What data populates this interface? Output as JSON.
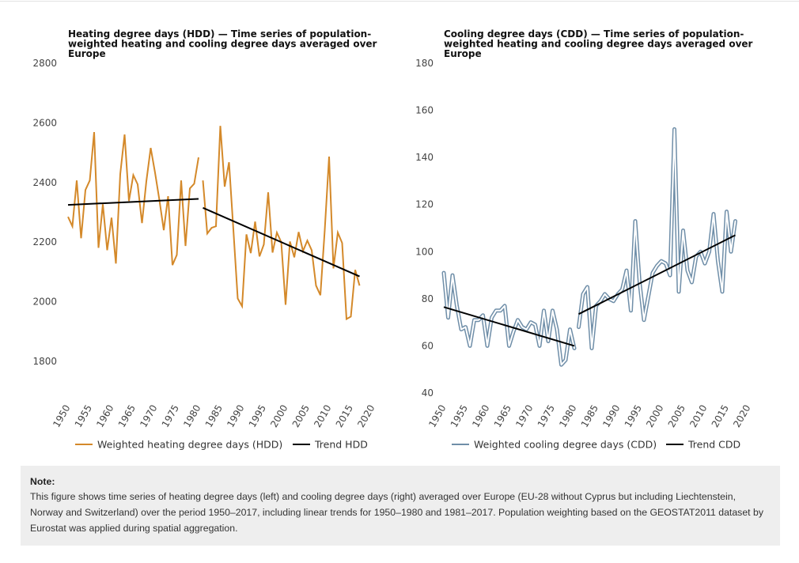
{
  "chart_data": [
    {
      "type": "line",
      "title_lines": [
        "Heating degree days (HDD) — Time series of population-",
        "weighted heating and cooling degree days averaged over",
        "Europe"
      ],
      "xlabel": "",
      "ylabel": "",
      "ylim": [
        1700,
        2800
      ],
      "yticks": [
        "1800",
        "2000",
        "2200",
        "2400",
        "2600",
        "2800"
      ],
      "ytick_values": [
        1800,
        2000,
        2200,
        2400,
        2600,
        2800
      ],
      "xlim": [
        1950,
        2020
      ],
      "xticks": [
        "1950",
        "1955",
        "1960",
        "1965",
        "1970",
        "1975",
        "1980",
        "1985",
        "1990",
        "1995",
        "2000",
        "2005",
        "2010",
        "2015",
        "2020"
      ],
      "xtick_values": [
        1950,
        1955,
        1960,
        1965,
        1970,
        1975,
        1980,
        1985,
        1990,
        1995,
        2000,
        2005,
        2010,
        2015,
        2020
      ],
      "grid": false,
      "legend_position": "bottom",
      "series": [
        {
          "name": "Weighted heating degree days (HDD)",
          "color": "#d4892a",
          "style": "line",
          "segments": [
            {
              "x": [
                1950,
                1951,
                1952,
                1953,
                1954,
                1955,
                1956,
                1957,
                1958,
                1959,
                1960,
                1961,
                1962,
                1963,
                1964,
                1965,
                1966,
                1967,
                1968,
                1969,
                1970,
                1971,
                1972,
                1973,
                1974,
                1975,
                1976,
                1977,
                1978,
                1979,
                1980
              ],
              "y": [
                2285,
                2253,
                2407,
                2213,
                2375,
                2407,
                2569,
                2181,
                2327,
                2173,
                2282,
                2128,
                2428,
                2561,
                2338,
                2425,
                2394,
                2264,
                2404,
                2516,
                2433,
                2341,
                2240,
                2354,
                2123,
                2157,
                2407,
                2187,
                2380,
                2396,
                2484
              ]
            },
            {
              "x": [
                1981,
                1982,
                1983,
                1984,
                1985,
                1986,
                1987,
                1988,
                1989,
                1990,
                1991,
                1992,
                1993,
                1994,
                1995,
                1996,
                1997,
                1998,
                1999,
                2000,
                2001,
                2002,
                2003,
                2004,
                2005,
                2006,
                2007,
                2008,
                2009,
                2010,
                2011,
                2012,
                2013,
                2014,
                2015,
                2016,
                2017
              ],
              "y": [
                2407,
                2229,
                2248,
                2253,
                2590,
                2386,
                2468,
                2242,
                2011,
                1985,
                2226,
                2163,
                2269,
                2152,
                2192,
                2367,
                2165,
                2232,
                2200,
                1990,
                2202,
                2149,
                2234,
                2170,
                2205,
                2173,
                2054,
                2022,
                2240,
                2487,
                2112,
                2232,
                2197,
                1942,
                1950,
                2107,
                2054
              ]
            }
          ]
        },
        {
          "name": "Trend HDD",
          "color": "#000000",
          "style": "trend",
          "segments": [
            {
              "x": [
                1950,
                1980
              ],
              "y": [
                2325,
                2345
              ]
            },
            {
              "x": [
                1981,
                2017
              ],
              "y": [
                2315,
                2085
              ]
            }
          ]
        }
      ]
    },
    {
      "type": "line",
      "title_lines": [
        "Cooling degree days (CDD) — Time series of population-",
        "weighted heating and cooling degree days averaged over",
        "Europe"
      ],
      "xlabel": "",
      "ylabel": "",
      "ylim": [
        40,
        180
      ],
      "yticks": [
        "40",
        "60",
        "80",
        "100",
        "120",
        "140",
        "160",
        "180"
      ],
      "ytick_values": [
        40,
        60,
        80,
        100,
        120,
        140,
        160,
        180
      ],
      "xlim": [
        1950,
        2020
      ],
      "xticks": [
        "1950",
        "1955",
        "1960",
        "1965",
        "1970",
        "1975",
        "1980",
        "1985",
        "1990",
        "1995",
        "2000",
        "2005",
        "2010",
        "2015",
        "2020"
      ],
      "xtick_values": [
        1950,
        1955,
        1960,
        1965,
        1970,
        1975,
        1980,
        1985,
        1990,
        1995,
        2000,
        2005,
        2010,
        2015,
        2020
      ],
      "grid": false,
      "legend_position": "bottom",
      "series": [
        {
          "name": "Weighted cooling degree days (CDD)",
          "color": "#6f8ea8",
          "style": "halo",
          "segments": [
            {
              "x": [
                1950,
                1951,
                1952,
                1953,
                1954,
                1955,
                1956,
                1957,
                1958,
                1959,
                1960,
                1961,
                1962,
                1963,
                1964,
                1965,
                1966,
                1967,
                1968,
                1969,
                1970,
                1971,
                1972,
                1973,
                1974,
                1975,
                1976,
                1977,
                1978,
                1979,
                1980
              ],
              "y": [
                91,
                72,
                90,
                77,
                67,
                68,
                60,
                71,
                71,
                73,
                60,
                72,
                75,
                75,
                77,
                60,
                66,
                71,
                68,
                67,
                70,
                69,
                60,
                75,
                62,
                75,
                67,
                52,
                54,
                67,
                59
              ]
            },
            {
              "x": [
                1981,
                1982,
                1983,
                1984,
                1985,
                1986,
                1987,
                1988,
                1989,
                1990,
                1991,
                1992,
                1993,
                1994,
                1995,
                1996,
                1997,
                1998,
                1999,
                2000,
                2001,
                2002,
                2003,
                2004,
                2005,
                2006,
                2007,
                2008,
                2009,
                2010,
                2011,
                2012,
                2013,
                2014,
                2015,
                2016,
                2017
              ],
              "y": [
                68,
                82,
                85,
                59,
                77,
                79,
                82,
                80,
                79,
                82,
                84,
                92,
                75,
                113,
                87,
                71,
                81,
                91,
                94,
                96,
                95,
                90,
                152,
                83,
                109,
                92,
                87,
                98,
                100,
                95,
                100,
                116,
                96,
                83,
                117,
                100,
                113
              ]
            }
          ]
        },
        {
          "name": "Trend CDD",
          "color": "#000000",
          "style": "trend",
          "segments": [
            {
              "x": [
                1950,
                1980
              ],
              "y": [
                76.5,
                60
              ]
            },
            {
              "x": [
                1981,
                2017
              ],
              "y": [
                73.5,
                107
              ]
            }
          ]
        }
      ]
    }
  ],
  "note": {
    "title": "Note:",
    "text": "This figure shows time series of heating degree days (left) and cooling degree days (right) averaged over Europe (EU-28 without Cyprus but including Liechtenstein, Norway and Switzerland) over the period 1950–2017, including linear trends for 1950–1980 and 1981–2017. Population weighting based on the GEOSTAT2011 dataset by Eurostat was applied during spatial aggregation."
  }
}
